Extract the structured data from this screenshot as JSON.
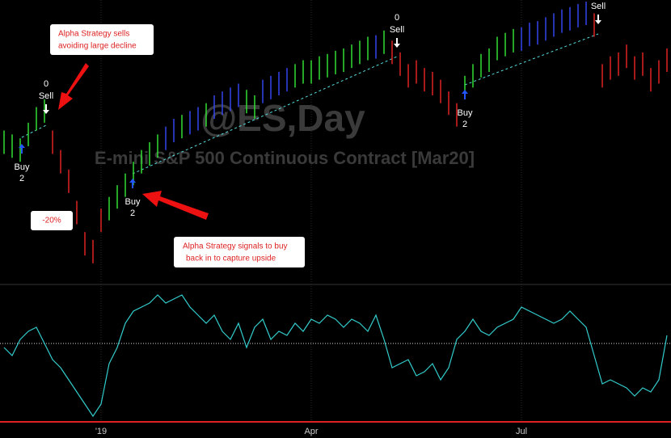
{
  "chart_data": {
    "type": "bar-ohlc",
    "watermark_symbol": "@ES,Day",
    "watermark_name": "E-mini S&P 500 Continuous Contract [Mar20]",
    "high": [
      195,
      190,
      185,
      205,
      225,
      235,
      195,
      170,
      145,
      105,
      65,
      55,
      95,
      110,
      125,
      140,
      155,
      170,
      180,
      190,
      200,
      210,
      215,
      220,
      225,
      230,
      240,
      245,
      250,
      255,
      247,
      240,
      260,
      265,
      270,
      275,
      280,
      285,
      285,
      290,
      293,
      297,
      300,
      305,
      310,
      315,
      317,
      323,
      310,
      295,
      280,
      285,
      275,
      270,
      260,
      245,
      230,
      265,
      280,
      293,
      300,
      315,
      320,
      325,
      327,
      333,
      335,
      340,
      345,
      350,
      353,
      357,
      360,
      345,
      280,
      290,
      295,
      305,
      290,
      295,
      275,
      285,
      300
    ],
    "low": [
      165,
      160,
      155,
      175,
      195,
      205,
      165,
      140,
      115,
      75,
      35,
      25,
      65,
      80,
      95,
      110,
      125,
      140,
      150,
      160,
      170,
      180,
      185,
      190,
      195,
      200,
      210,
      215,
      220,
      225,
      217,
      210,
      230,
      235,
      240,
      245,
      250,
      255,
      255,
      260,
      263,
      267,
      270,
      275,
      280,
      285,
      287,
      293,
      280,
      265,
      250,
      255,
      245,
      240,
      230,
      215,
      200,
      235,
      250,
      263,
      270,
      285,
      290,
      295,
      297,
      303,
      305,
      310,
      315,
      320,
      323,
      327,
      330,
      315,
      250,
      260,
      265,
      275,
      260,
      265,
      245,
      255,
      270
    ],
    "bar_colors": [
      "#33dd33",
      "#33dd33",
      "#33dd33",
      "#33dd33",
      "#33dd33",
      "#33dd33",
      "#dd2222",
      "#dd2222",
      "#dd2222",
      "#dd2222",
      "#dd2222",
      "#dd2222",
      "#dd2222",
      "#33dd33",
      "#33dd33",
      "#33dd33",
      "#33dd33",
      "#33dd33",
      "#33dd33",
      "#33dd33",
      "#3344ee",
      "#3344ee",
      "#33dd33",
      "#3344ee",
      "#3344ee",
      "#33dd33",
      "#3344ee",
      "#3344ee",
      "#3344ee",
      "#3344ee",
      "#33dd33",
      "#33dd33",
      "#3344ee",
      "#3344ee",
      "#3344ee",
      "#3344ee",
      "#33dd33",
      "#33dd33",
      "#33dd33",
      "#33dd33",
      "#33dd33",
      "#33dd33",
      "#33dd33",
      "#33dd33",
      "#33dd33",
      "#33dd33",
      "#3344ee",
      "#33dd33",
      "#dd2222",
      "#dd2222",
      "#dd2222",
      "#dd2222",
      "#dd2222",
      "#dd2222",
      "#dd2222",
      "#dd2222",
      "#dd2222",
      "#33dd33",
      "#33dd33",
      "#33dd33",
      "#33dd33",
      "#33dd33",
      "#33dd33",
      "#33dd33",
      "#3344ee",
      "#3344ee",
      "#3344ee",
      "#3344ee",
      "#3344ee",
      "#3344ee",
      "#3344ee",
      "#3344ee",
      "#3344ee",
      "#dd2222",
      "#dd2222",
      "#dd2222",
      "#dd2222",
      "#dd2222",
      "#dd2222",
      "#dd2222",
      "#dd2222",
      "#dd2222",
      "#dd2222"
    ],
    "ylim": [
      0,
      360
    ],
    "indicator": {
      "color": "#33cccc",
      "ylim": [
        0,
        167
      ],
      "ref_level": 97,
      "ref_color": "#dddddd",
      "values": [
        92,
        82,
        102,
        112,
        117,
        97,
        77,
        67,
        52,
        37,
        22,
        7,
        22,
        72,
        92,
        122,
        137,
        142,
        147,
        157,
        147,
        152,
        157,
        142,
        132,
        122,
        132,
        112,
        102,
        122,
        92,
        117,
        127,
        102,
        112,
        107,
        122,
        112,
        127,
        122,
        132,
        127,
        117,
        127,
        122,
        112,
        132,
        102,
        67,
        72,
        77,
        57,
        62,
        72,
        52,
        67,
        102,
        112,
        127,
        112,
        107,
        117,
        122,
        127,
        142,
        137,
        132,
        127,
        122,
        127,
        137,
        127,
        117,
        82,
        47,
        52,
        47,
        42,
        32,
        42,
        37,
        52,
        107
      ]
    },
    "categories": [
      null,
      null,
      null,
      null,
      null,
      null,
      null,
      null,
      null,
      null,
      null,
      null,
      "'19",
      null,
      null,
      null,
      null,
      null,
      null,
      null,
      null,
      null,
      null,
      null,
      null,
      null,
      null,
      null,
      null,
      null,
      null,
      null,
      null,
      null,
      null,
      null,
      null,
      null,
      "Apr",
      null,
      null,
      null,
      null,
      null,
      null,
      null,
      null,
      null,
      null,
      null,
      null,
      null,
      null,
      null,
      null,
      null,
      null,
      null,
      null,
      null,
      null,
      null,
      null,
      null,
      "Jul",
      null,
      null,
      null,
      null,
      null,
      null,
      null,
      null,
      null,
      null,
      null,
      null,
      null,
      null,
      null,
      null,
      null,
      null
    ],
    "signals": [
      {
        "action": "Buy",
        "qty": "2"
      },
      {
        "qty": "0",
        "action": "Sell"
      },
      {
        "action": "Buy",
        "qty": "2"
      },
      {
        "qty": "0",
        "action": "Sell"
      },
      {
        "action": "Buy",
        "qty": "2"
      },
      {
        "action": "Sell"
      }
    ],
    "callouts": [
      "Alpha Strategy sells",
      "avoiding large decline",
      "-20%",
      "Alpha Strategy signals to buy",
      "back in to capture upside"
    ]
  }
}
